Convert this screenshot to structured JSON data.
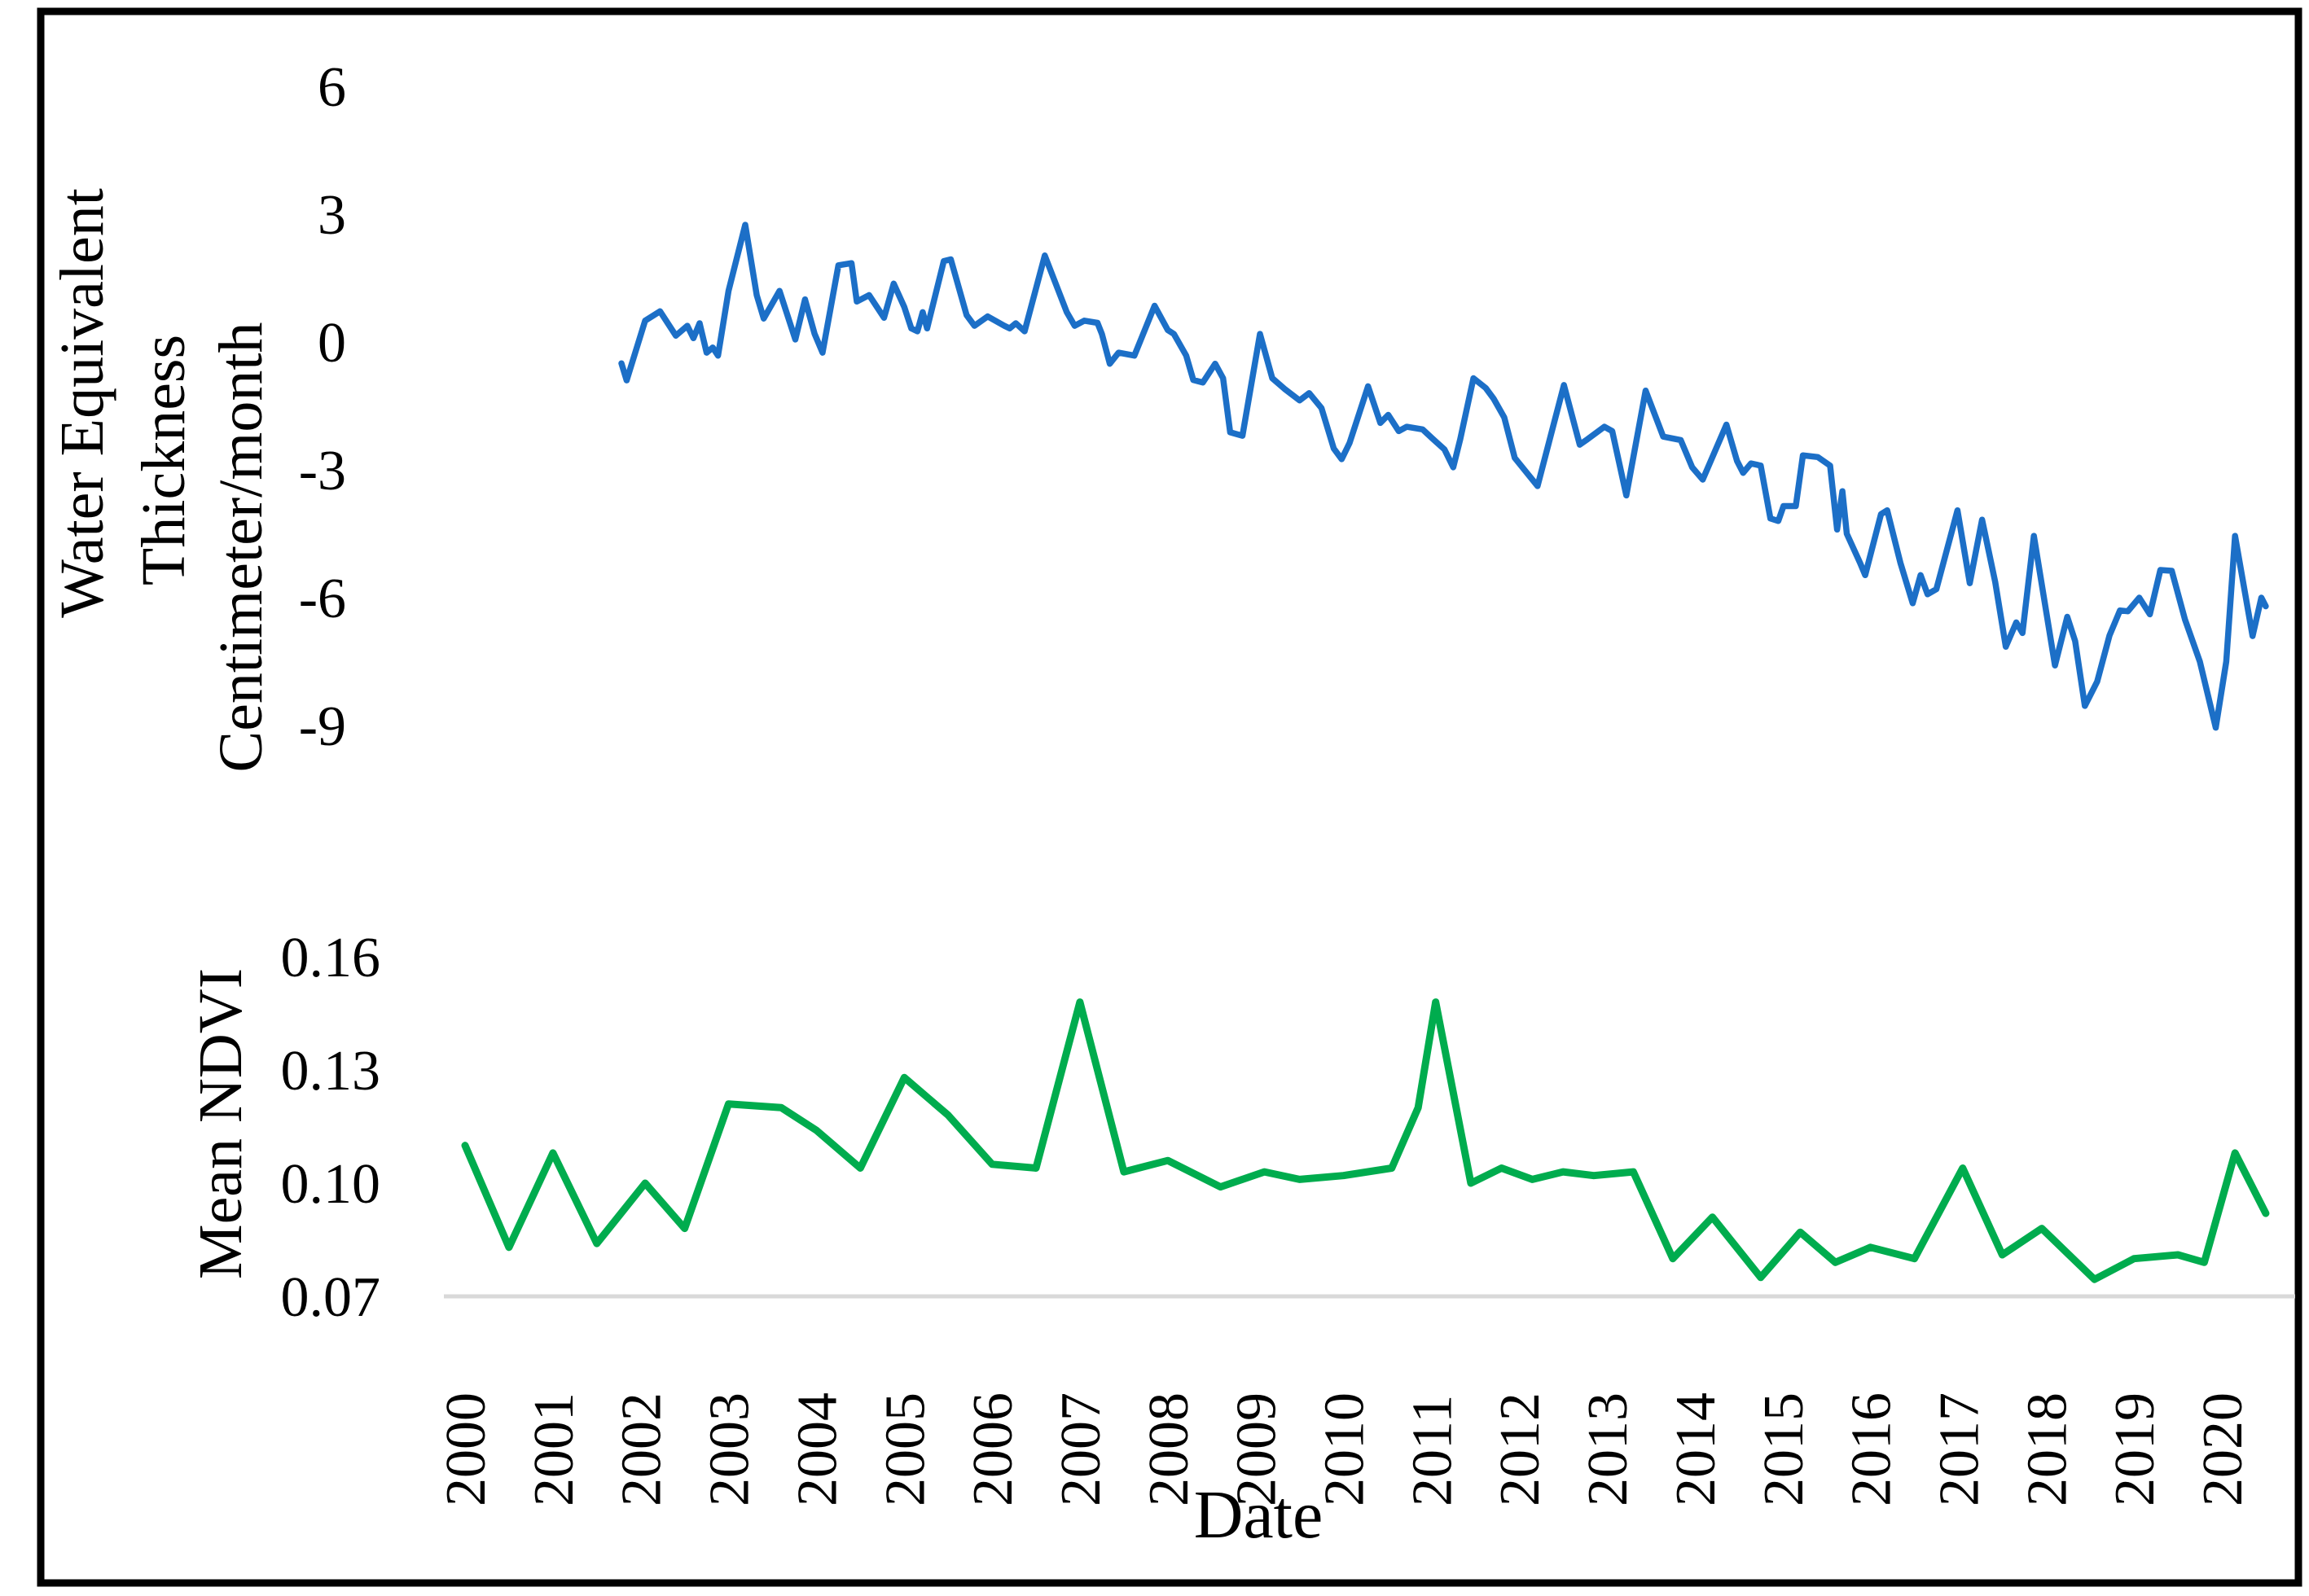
{
  "figure": {
    "background": "#ffffff",
    "border_color": "#000000"
  },
  "chart_data": [
    {
      "type": "line",
      "title": "",
      "ylabel_lines": [
        "Water Equivalent",
        "Thickness",
        "Centimeter/month"
      ],
      "yticks": [
        {
          "label": "6",
          "value": 6
        },
        {
          "label": "3",
          "value": 3
        },
        {
          "label": "0",
          "value": 0
        },
        {
          "label": "-3",
          "value": -3
        },
        {
          "label": "-6",
          "value": -6
        },
        {
          "label": "-9",
          "value": -9
        }
      ],
      "ylim": [
        -9,
        6
      ],
      "xlim": [
        2000,
        2021
      ],
      "grid": false,
      "series": [
        {
          "name": "Water Equivalent Thickness (cm/month)",
          "color": "#1C6FC7",
          "points": [
            [
              2001.78,
              -0.5
            ],
            [
              2001.84,
              -0.9
            ],
            [
              2002.05,
              0.5
            ],
            [
              2002.22,
              0.72
            ],
            [
              2002.4,
              0.15
            ],
            [
              2002.53,
              0.38
            ],
            [
              2002.6,
              0.09
            ],
            [
              2002.67,
              0.44
            ],
            [
              2002.75,
              -0.25
            ],
            [
              2002.82,
              -0.13
            ],
            [
              2002.88,
              -0.32
            ],
            [
              2003.0,
              1.2
            ],
            [
              2003.19,
              2.75
            ],
            [
              2003.32,
              1.1
            ],
            [
              2003.4,
              0.55
            ],
            [
              2003.58,
              1.2
            ],
            [
              2003.76,
              0.06
            ],
            [
              2003.87,
              1.0
            ],
            [
              2003.98,
              0.19
            ],
            [
              2004.07,
              -0.25
            ],
            [
              2004.25,
              1.8
            ],
            [
              2004.4,
              1.85
            ],
            [
              2004.46,
              0.95
            ],
            [
              2004.6,
              1.1
            ],
            [
              2004.77,
              0.57
            ],
            [
              2004.88,
              1.37
            ],
            [
              2005.0,
              0.82
            ],
            [
              2005.08,
              0.32
            ],
            [
              2005.15,
              0.25
            ],
            [
              2005.21,
              0.7
            ],
            [
              2005.26,
              0.32
            ],
            [
              2005.45,
              1.9
            ],
            [
              2005.53,
              1.94
            ],
            [
              2005.71,
              0.63
            ],
            [
              2005.8,
              0.38
            ],
            [
              2005.95,
              0.6
            ],
            [
              2006.14,
              0.38
            ],
            [
              2006.2,
              0.32
            ],
            [
              2006.27,
              0.44
            ],
            [
              2006.37,
              0.25
            ],
            [
              2006.6,
              2.03
            ],
            [
              2006.85,
              0.7
            ],
            [
              2006.94,
              0.38
            ],
            [
              2007.05,
              0.5
            ],
            [
              2007.2,
              0.45
            ],
            [
              2007.25,
              0.19
            ],
            [
              2007.34,
              -0.51
            ],
            [
              2007.44,
              -0.25
            ],
            [
              2007.62,
              -0.32
            ],
            [
              2007.85,
              0.85
            ],
            [
              2008.0,
              0.28
            ],
            [
              2008.07,
              0.19
            ],
            [
              2008.21,
              -0.32
            ],
            [
              2008.29,
              -0.89
            ],
            [
              2008.4,
              -0.95
            ],
            [
              2008.54,
              -0.51
            ],
            [
              2008.63,
              -0.85
            ],
            [
              2008.71,
              -2.12
            ],
            [
              2008.85,
              -2.2
            ],
            [
              2009.05,
              0.19
            ],
            [
              2009.19,
              -0.85
            ],
            [
              2009.33,
              -1.1
            ],
            [
              2009.5,
              -1.37
            ],
            [
              2009.61,
              -1.2
            ],
            [
              2009.75,
              -1.55
            ],
            [
              2009.89,
              -2.5
            ],
            [
              2009.98,
              -2.75
            ],
            [
              2010.07,
              -2.37
            ],
            [
              2010.28,
              -1.04
            ],
            [
              2010.42,
              -1.9
            ],
            [
              2010.51,
              -1.71
            ],
            [
              2010.63,
              -2.09
            ],
            [
              2010.72,
              -1.99
            ],
            [
              2010.9,
              -2.05
            ],
            [
              2011.02,
              -2.28
            ],
            [
              2011.15,
              -2.52
            ],
            [
              2011.25,
              -2.94
            ],
            [
              2011.33,
              -2.28
            ],
            [
              2011.48,
              -0.85
            ],
            [
              2011.62,
              -1.08
            ],
            [
              2011.71,
              -1.33
            ],
            [
              2011.83,
              -1.77
            ],
            [
              2011.95,
              -2.72
            ],
            [
              2012.21,
              -3.38
            ],
            [
              2012.51,
              -1.01
            ],
            [
              2012.69,
              -2.41
            ],
            [
              2012.78,
              -2.28
            ],
            [
              2012.97,
              -1.99
            ],
            [
              2013.06,
              -2.09
            ],
            [
              2013.22,
              -3.6
            ],
            [
              2013.44,
              -1.14
            ],
            [
              2013.64,
              -2.22
            ],
            [
              2013.84,
              -2.3
            ],
            [
              2013.97,
              -2.94
            ],
            [
              2014.09,
              -3.23
            ],
            [
              2014.36,
              -1.94
            ],
            [
              2014.48,
              -2.79
            ],
            [
              2014.55,
              -3.07
            ],
            [
              2014.64,
              -2.85
            ],
            [
              2014.75,
              -2.9
            ],
            [
              2014.86,
              -4.14
            ],
            [
              2014.95,
              -4.2
            ],
            [
              2015.01,
              -3.85
            ],
            [
              2015.15,
              -3.85
            ],
            [
              2015.23,
              -2.66
            ],
            [
              2015.4,
              -2.7
            ],
            [
              2015.54,
              -2.9
            ],
            [
              2015.62,
              -4.4
            ],
            [
              2015.68,
              -3.5
            ],
            [
              2015.73,
              -4.5
            ],
            [
              2015.88,
              -5.18
            ],
            [
              2015.94,
              -5.47
            ],
            [
              2016.12,
              -4.04
            ],
            [
              2016.19,
              -3.95
            ],
            [
              2016.34,
              -5.18
            ],
            [
              2016.48,
              -6.13
            ],
            [
              2016.57,
              -5.47
            ],
            [
              2016.65,
              -5.92
            ],
            [
              2016.75,
              -5.8
            ],
            [
              2016.99,
              -3.95
            ],
            [
              2017.13,
              -5.66
            ],
            [
              2017.27,
              -4.17
            ],
            [
              2017.42,
              -5.63
            ],
            [
              2017.54,
              -7.15
            ],
            [
              2017.66,
              -6.58
            ],
            [
              2017.73,
              -6.83
            ],
            [
              2017.86,
              -4.55
            ],
            [
              2018.1,
              -7.59
            ],
            [
              2018.24,
              -6.45
            ],
            [
              2018.33,
              -7.02
            ],
            [
              2018.44,
              -8.54
            ],
            [
              2018.58,
              -7.97
            ],
            [
              2018.72,
              -6.89
            ],
            [
              2018.84,
              -6.3
            ],
            [
              2018.93,
              -6.32
            ],
            [
              2019.06,
              -6.0
            ],
            [
              2019.18,
              -6.39
            ],
            [
              2019.3,
              -5.35
            ],
            [
              2019.43,
              -5.37
            ],
            [
              2019.58,
              -6.51
            ],
            [
              2019.75,
              -7.5
            ],
            [
              2019.93,
              -9.05
            ],
            [
              2020.05,
              -7.5
            ],
            [
              2020.15,
              -4.55
            ],
            [
              2020.35,
              -6.9
            ],
            [
              2020.45,
              -6.0
            ],
            [
              2020.5,
              -6.2
            ]
          ]
        }
      ]
    },
    {
      "type": "line",
      "title": "",
      "ylabel": "Mean NDVI",
      "xlabel": "Date",
      "yticks": [
        {
          "label": "0.16",
          "value": 0.16
        },
        {
          "label": "0.13",
          "value": 0.13
        },
        {
          "label": "0.10",
          "value": 0.1
        },
        {
          "label": "0.07",
          "value": 0.07
        }
      ],
      "xticks": [
        {
          "label": "2000",
          "value": 2000
        },
        {
          "label": "2001",
          "value": 2001
        },
        {
          "label": "2002",
          "value": 2002
        },
        {
          "label": "2003",
          "value": 2003
        },
        {
          "label": "2004",
          "value": 2004
        },
        {
          "label": "2005",
          "value": 2005
        },
        {
          "label": "2006",
          "value": 2006
        },
        {
          "label": "2007",
          "value": 2007
        },
        {
          "label": "2008",
          "value": 2008
        },
        {
          "label": "2009",
          "value": 2009
        },
        {
          "label": "2010",
          "value": 2010
        },
        {
          "label": "2011",
          "value": 2011
        },
        {
          "label": "2012",
          "value": 2012
        },
        {
          "label": "2013",
          "value": 2013
        },
        {
          "label": "2014",
          "value": 2014
        },
        {
          "label": "2015",
          "value": 2015
        },
        {
          "label": "2016",
          "value": 2016
        },
        {
          "label": "2017",
          "value": 2017
        },
        {
          "label": "2018",
          "value": 2018
        },
        {
          "label": "2019",
          "value": 2019
        },
        {
          "label": "2020",
          "value": 2020
        }
      ],
      "ylim": [
        0.07,
        0.16
      ],
      "xlim": [
        2000,
        2021
      ],
      "grid": false,
      "baseline": {
        "value": 0.07,
        "color": "#D9D9D9"
      },
      "series": [
        {
          "name": "Mean NDVI",
          "color": "#00AC4E",
          "points": [
            [
              2000.0,
              0.11
            ],
            [
              2000.5,
              0.083
            ],
            [
              2001.0,
              0.108
            ],
            [
              2001.5,
              0.084
            ],
            [
              2002.05,
              0.1
            ],
            [
              2002.5,
              0.088
            ],
            [
              2003.0,
              0.121
            ],
            [
              2003.6,
              0.12
            ],
            [
              2004.0,
              0.114
            ],
            [
              2004.5,
              0.104
            ],
            [
              2005.0,
              0.128
            ],
            [
              2005.5,
              0.118
            ],
            [
              2006.0,
              0.105
            ],
            [
              2006.5,
              0.104
            ],
            [
              2007.0,
              0.148
            ],
            [
              2007.5,
              0.103
            ],
            [
              2008.0,
              0.106
            ],
            [
              2008.6,
              0.099
            ],
            [
              2009.1,
              0.103
            ],
            [
              2009.5,
              0.101
            ],
            [
              2010.0,
              0.102
            ],
            [
              2010.55,
              0.104
            ],
            [
              2010.85,
              0.12
            ],
            [
              2011.05,
              0.148
            ],
            [
              2011.45,
              0.1
            ],
            [
              2011.8,
              0.104
            ],
            [
              2012.15,
              0.101
            ],
            [
              2012.5,
              0.103
            ],
            [
              2012.85,
              0.102
            ],
            [
              2013.3,
              0.103
            ],
            [
              2013.75,
              0.08
            ],
            [
              2014.2,
              0.091
            ],
            [
              2014.75,
              0.075
            ],
            [
              2015.2,
              0.087
            ],
            [
              2015.6,
              0.079
            ],
            [
              2016.0,
              0.083
            ],
            [
              2016.5,
              0.08
            ],
            [
              2017.05,
              0.104
            ],
            [
              2017.5,
              0.081
            ],
            [
              2017.95,
              0.088
            ],
            [
              2018.55,
              0.0745
            ],
            [
              2019.0,
              0.08
            ],
            [
              2019.5,
              0.081
            ],
            [
              2019.8,
              0.079
            ],
            [
              2020.15,
              0.108
            ],
            [
              2020.5,
              0.092
            ]
          ]
        }
      ]
    }
  ]
}
